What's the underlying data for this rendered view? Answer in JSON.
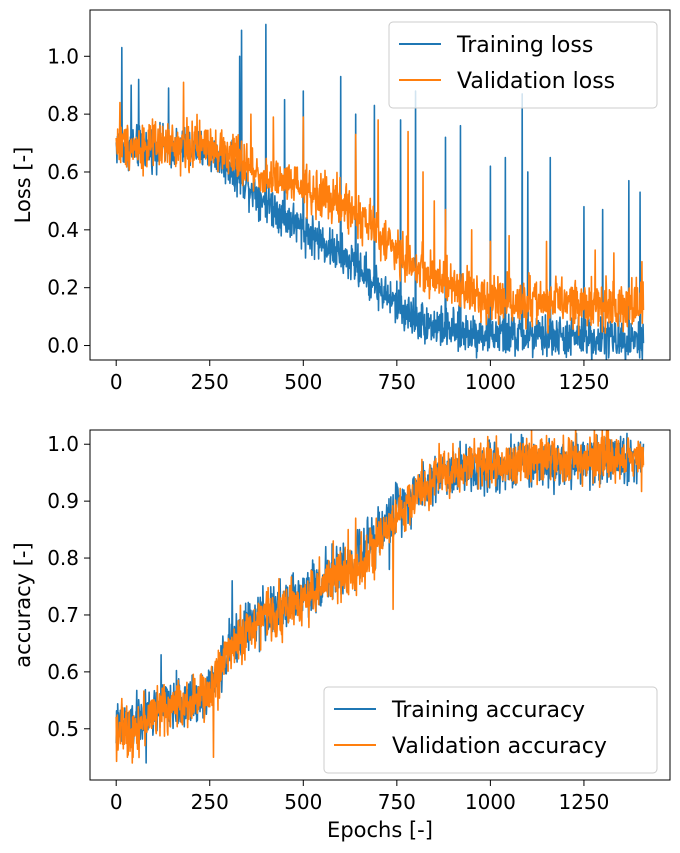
{
  "chart_data": [
    {
      "type": "line",
      "title": "",
      "xlabel": "",
      "ylabel": "Loss [-]",
      "xlim": [
        -70,
        1480
      ],
      "ylim": [
        -0.05,
        1.16
      ],
      "xticks": [
        0,
        250,
        500,
        750,
        1000,
        1250
      ],
      "yticks": [
        0.0,
        0.2,
        0.4,
        0.6,
        0.8,
        1.0
      ],
      "ytick_decimals": 1,
      "grid": false,
      "legend_position": "top-right",
      "n_points": 1410,
      "series": [
        {
          "name": "Training loss",
          "color": "#1f77b4",
          "x": [
            0,
            50,
            100,
            150,
            200,
            250,
            300,
            350,
            400,
            450,
            500,
            550,
            600,
            650,
            700,
            750,
            800,
            850,
            900,
            950,
            1000,
            1050,
            1100,
            1150,
            1200,
            1250,
            1300,
            1350,
            1410
          ],
          "values": [
            0.69,
            0.685,
            0.685,
            0.685,
            0.68,
            0.675,
            0.62,
            0.56,
            0.5,
            0.45,
            0.4,
            0.36,
            0.31,
            0.27,
            0.2,
            0.14,
            0.09,
            0.07,
            0.05,
            0.045,
            0.04,
            0.035,
            0.03,
            0.03,
            0.028,
            0.028,
            0.026,
            0.025,
            0.025
          ],
          "noise": 0.035,
          "spikes": [
            [
              15,
              1.03
            ],
            [
              40,
              0.9
            ],
            [
              60,
              0.92
            ],
            [
              140,
              0.89
            ],
            [
              330,
              1.0
            ],
            [
              335,
              1.09
            ],
            [
              400,
              1.11
            ],
            [
              450,
              0.85
            ],
            [
              500,
              0.88
            ],
            [
              600,
              0.93
            ],
            [
              640,
              0.8
            ],
            [
              690,
              0.83
            ],
            [
              760,
              0.78
            ],
            [
              800,
              0.88
            ],
            [
              880,
              0.72
            ],
            [
              920,
              0.76
            ],
            [
              1000,
              0.62
            ],
            [
              1040,
              0.65
            ],
            [
              1085,
              0.87
            ],
            [
              1100,
              0.6
            ],
            [
              1160,
              0.65
            ],
            [
              1250,
              0.48
            ],
            [
              1300,
              0.47
            ],
            [
              1370,
              0.57
            ],
            [
              1400,
              0.53
            ]
          ]
        },
        {
          "name": "Validation loss",
          "color": "#ff7f0e",
          "x": [
            0,
            50,
            100,
            150,
            200,
            250,
            300,
            350,
            400,
            450,
            500,
            550,
            600,
            650,
            700,
            750,
            800,
            850,
            900,
            950,
            1000,
            1050,
            1100,
            1150,
            1200,
            1250,
            1300,
            1350,
            1410
          ],
          "values": [
            0.7,
            0.69,
            0.69,
            0.69,
            0.69,
            0.7,
            0.66,
            0.62,
            0.58,
            0.56,
            0.54,
            0.52,
            0.49,
            0.45,
            0.39,
            0.32,
            0.27,
            0.24,
            0.2,
            0.18,
            0.17,
            0.16,
            0.15,
            0.15,
            0.15,
            0.14,
            0.14,
            0.14,
            0.14
          ],
          "noise": 0.04,
          "spikes": [
            [
              10,
              0.84
            ],
            [
              180,
              0.91
            ],
            [
              360,
              0.8
            ],
            [
              420,
              0.79
            ],
            [
              500,
              0.79
            ],
            [
              640,
              0.73
            ],
            [
              700,
              0.78
            ],
            [
              780,
              0.74
            ],
            [
              820,
              0.6
            ],
            [
              850,
              0.5
            ],
            [
              880,
              0.47
            ],
            [
              950,
              0.4
            ],
            [
              1000,
              0.36
            ],
            [
              1050,
              0.38
            ],
            [
              1150,
              0.36
            ],
            [
              1280,
              0.33
            ],
            [
              1330,
              0.32
            ],
            [
              1405,
              0.29
            ]
          ]
        }
      ]
    },
    {
      "type": "line",
      "title": "",
      "xlabel": "Epochs [-]",
      "ylabel": "accuracy [-]",
      "xlim": [
        -70,
        1480
      ],
      "ylim": [
        0.41,
        1.025
      ],
      "xticks": [
        0,
        250,
        500,
        750,
        1000,
        1250
      ],
      "yticks": [
        0.5,
        0.6,
        0.7,
        0.8,
        0.9,
        1.0
      ],
      "ytick_decimals": 1,
      "grid": false,
      "legend_position": "bottom-right",
      "n_points": 1410,
      "series": [
        {
          "name": "Training accuracy",
          "color": "#1f77b4",
          "x": [
            0,
            50,
            100,
            150,
            200,
            250,
            300,
            350,
            400,
            450,
            500,
            550,
            600,
            650,
            700,
            750,
            800,
            850,
            900,
            950,
            1000,
            1050,
            1100,
            1150,
            1200,
            1250,
            1300,
            1350,
            1410
          ],
          "values": [
            0.5,
            0.51,
            0.53,
            0.54,
            0.55,
            0.57,
            0.64,
            0.68,
            0.7,
            0.72,
            0.74,
            0.76,
            0.78,
            0.8,
            0.84,
            0.89,
            0.92,
            0.94,
            0.955,
            0.96,
            0.965,
            0.965,
            0.97,
            0.97,
            0.97,
            0.972,
            0.975,
            0.975,
            0.975
          ],
          "noise": 0.022,
          "spikes": [
            [
              80,
              0.44
            ],
            [
              120,
              0.63
            ],
            [
              310,
              0.76
            ],
            [
              470,
              0.77
            ],
            [
              560,
              0.82
            ],
            [
              650,
              0.85
            ],
            [
              700,
              0.89
            ],
            [
              730,
              0.78
            ],
            [
              1000,
              0.99
            ]
          ]
        },
        {
          "name": "Validation accuracy",
          "color": "#ff7f0e",
          "x": [
            0,
            50,
            100,
            150,
            200,
            250,
            300,
            350,
            400,
            450,
            500,
            550,
            600,
            650,
            700,
            750,
            800,
            850,
            900,
            950,
            1000,
            1050,
            1100,
            1150,
            1200,
            1250,
            1300,
            1350,
            1410
          ],
          "values": [
            0.5,
            0.5,
            0.53,
            0.54,
            0.55,
            0.56,
            0.64,
            0.67,
            0.7,
            0.71,
            0.73,
            0.75,
            0.77,
            0.79,
            0.82,
            0.87,
            0.91,
            0.94,
            0.955,
            0.965,
            0.97,
            0.97,
            0.975,
            0.975,
            0.975,
            0.975,
            0.978,
            0.978,
            0.98
          ],
          "noise": 0.022,
          "spikes": [
            [
              30,
              0.45
            ],
            [
              260,
              0.45
            ],
            [
              580,
              0.83
            ],
            [
              620,
              0.85
            ],
            [
              640,
              0.87
            ],
            [
              740,
              0.71
            ],
            [
              850,
              0.97
            ],
            [
              1400,
              1.0
            ]
          ]
        }
      ]
    }
  ]
}
